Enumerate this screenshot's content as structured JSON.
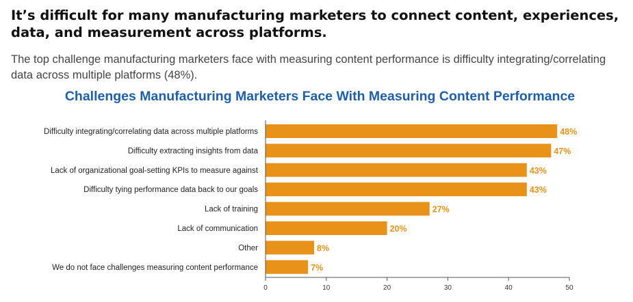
{
  "header": {
    "headline": "It’s difficult for many manufacturing marketers to connect content, experiences, data, and measurement across platforms.",
    "subtext": "The top challenge manufacturing marketers face with measuring content performance is difficulty integrating/correlating data across multiple platforms (48%)."
  },
  "colors": {
    "bar": "#e8921a",
    "title": "#1f5fa8",
    "value_label": "#e8921a"
  },
  "chart_data": {
    "type": "bar",
    "orientation": "horizontal",
    "title": "Challenges Manufacturing Marketers Face With Measuring Content Performance",
    "categories": [
      "Difficulty integrating/correlating data across multiple platforms",
      "Difficulty extracting insights from data",
      "Lack of organizational goal-setting KPIs to measure against",
      "Difficulty tying performance data back to our goals",
      "Lack of training",
      "Lack of communication",
      "Other",
      "We do not face challenges measuring content performance"
    ],
    "values": [
      48,
      47,
      43,
      43,
      27,
      20,
      8,
      7
    ],
    "value_labels": [
      "48%",
      "47%",
      "43%",
      "43%",
      "27%",
      "20%",
      "8%",
      "7%"
    ],
    "xlim": [
      0,
      50
    ],
    "xticks": [
      "0",
      "10",
      "20",
      "30",
      "40",
      "50"
    ],
    "grid": false,
    "legend": "none"
  }
}
